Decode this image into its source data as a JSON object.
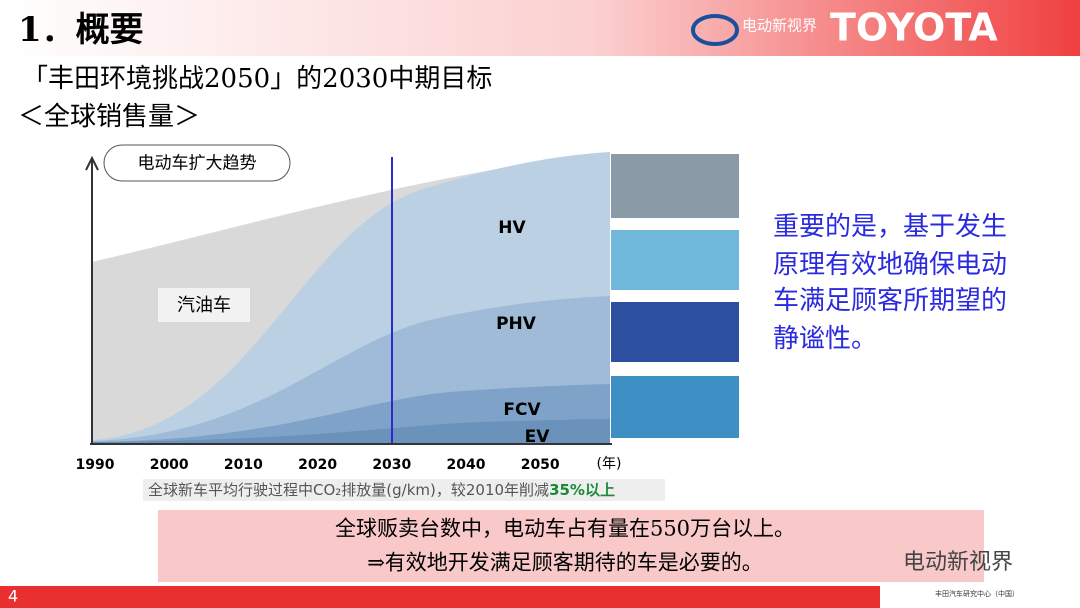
{
  "header": {
    "section_title": "1．概要",
    "logo_text": "电动新视界",
    "brand": "TOYOTA"
  },
  "subtitle": [
    "「丰田环境挑战2050」的2030中期目标",
    "＜全球销售量＞"
  ],
  "chart": {
    "trend_label": "电动车扩大趋势",
    "areas": [
      "汽油车",
      "HV",
      "PHV",
      "FCV",
      "EV"
    ],
    "x_labels": [
      "1990",
      "2000",
      "2010",
      "2020",
      "2030",
      "2040",
      "2050"
    ],
    "x_unit": "(年)",
    "note": "全球新车平均行驶过程中CO₂排放量(g/km)，较2010年削减",
    "note_highlight": "35%以上"
  },
  "side_text": [
    "重要的是，基于发生",
    "原理有效地确保电动",
    "车满足顾客所期望的",
    "静谧性。"
  ],
  "box_text": [
    "全球贩卖台数中，电动车占有量在550万台以上。",
    "⇒有效地开发满足顾客期待的车是必要的。"
  ],
  "footer": {
    "page": "4",
    "watermark": "电动新视界",
    "org": "丰田汽车研究中心（中国）"
  }
}
